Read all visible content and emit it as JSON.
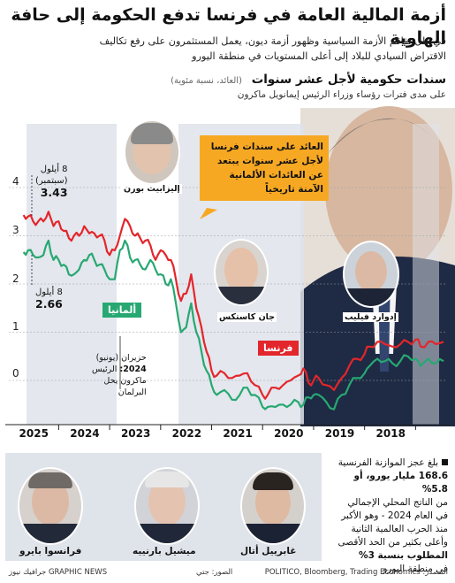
{
  "title": "أزمة المالية العامة في فرنسا تدفع الحكومة إلى حافة الهاوية",
  "intro_line1": "في ظل تفاقم الأزمة السياسية وظهور أزمة ديون، يعمل المستثمرون على رفع تكاليف",
  "intro_line2": "الاقتراض السيادي للبلاد إلى أعلى المستويات في منطقة اليورو",
  "chart_title": "سندات حكومية لأجل عشر سنوات",
  "chart_title_note": "(العائد، نسبة مئوية)",
  "chart_subnote": "على مدى فترات رؤساء وزراء الرئيس إيمانويل ماكرون",
  "callout": "العائد على سندات فرنسا لأجل عشر سنوات يبتعد عن العائدات الألمانية الآمنة تاريخياً",
  "annotations": {
    "france_date": "8 أيلول",
    "france_date_note": "(سبتمبر)",
    "france_value": "3.43",
    "germany_date": "8 أيلول",
    "germany_value": "2.66",
    "macron_date": "حزيران (يونيو)",
    "macron_year": "2024:",
    "macron_text1": "الرئيس",
    "macron_text2": "ماكرون يحل",
    "macron_text3": "البرلمان"
  },
  "series_tags": {
    "germany": "ألمانيا",
    "france": "فرنسا"
  },
  "pm_labels": {
    "borne": "إليزابيث بورن",
    "castex": "جان كاستكس",
    "philippe": "إدوارد فيليب",
    "attal": "غابرييل أتال",
    "barnier": "ميشيل بارنييه",
    "bayrou": "فرانسوا بايرو"
  },
  "deficit_text": {
    "line1": "بلغ عجز الموازنة الفرنسية",
    "line2": "168.6 مليار يورو، أو 5.8%",
    "line3": "من الناتج المحلي الإجمالي",
    "line4": "في العام 2024 - وهو الأكبر",
    "line5": "منذ الحرب العالمية الثانية",
    "line6": "وأعلى بكثير من الحد الأقصى",
    "line7": "المطلوب بنسبة 3%",
    "line8": "في منطقة اليورو"
  },
  "source": "المصدر: POLITICO, Bloomberg, Trading Economics",
  "photos": "الصور: جتي",
  "credit": "GRAPHIC NEWS جرافيك نيوز",
  "colors": {
    "france": "#e3262b",
    "germany": "#27a872",
    "callout": "#f7a823",
    "band": "#dfe3ea"
  },
  "chart_data": {
    "type": "line",
    "ylabel": "",
    "ylim": [
      -0.6,
      4.2
    ],
    "yticks": [
      0,
      1,
      2,
      3,
      4
    ],
    "xticks": [
      "2018",
      "2019",
      "2020",
      "2021",
      "2022",
      "2023",
      "2024",
      "2025"
    ],
    "x_axis_direction": "right-to-left",
    "x_range": [
      2017.4,
      2025.7
    ],
    "series": [
      {
        "name": "فرنسا",
        "x": [
          2017.45,
          2017.6,
          2017.75,
          2017.9,
          2018.0,
          2018.15,
          2018.3,
          2018.45,
          2018.6,
          2018.75,
          2018.9,
          2019.0,
          2019.15,
          2019.3,
          2019.45,
          2019.6,
          2019.75,
          2019.9,
          2020.0,
          2020.1,
          2020.2,
          2020.3,
          2020.45,
          2020.6,
          2020.75,
          2020.9,
          2021.0,
          2021.15,
          2021.3,
          2021.45,
          2021.6,
          2021.75,
          2021.9,
          2022.0,
          2022.1,
          2022.2,
          2022.3,
          2022.4,
          2022.5,
          2022.6,
          2022.7,
          2022.8,
          2022.9,
          2023.0,
          2023.1,
          2023.2,
          2023.3,
          2023.4,
          2023.5,
          2023.6,
          2023.7,
          2023.8,
          2023.9,
          2024.0,
          2024.1,
          2024.2,
          2024.3,
          2024.4,
          2024.5,
          2024.6,
          2024.7,
          2024.8,
          2024.9,
          2025.0,
          2025.1,
          2025.2,
          2025.3,
          2025.4,
          2025.5,
          2025.6,
          2025.69
        ],
        "values": [
          0.8,
          0.75,
          0.8,
          0.7,
          0.85,
          0.8,
          0.75,
          0.7,
          0.75,
          0.8,
          0.7,
          0.55,
          0.45,
          0.3,
          0.05,
          -0.2,
          -0.1,
          0.05,
          0.0,
          -0.05,
          0.25,
          0.1,
          0.0,
          -0.1,
          -0.15,
          -0.3,
          -0.3,
          -0.1,
          0.15,
          0.1,
          0.05,
          0.15,
          0.1,
          0.2,
          0.6,
          1.1,
          1.5,
          2.2,
          1.8,
          1.65,
          2.1,
          2.5,
          2.6,
          2.7,
          2.5,
          2.8,
          2.9,
          2.95,
          3.0,
          3.2,
          3.35,
          3.0,
          2.7,
          2.6,
          2.9,
          3.0,
          3.05,
          3.05,
          3.2,
          3.0,
          3.0,
          2.95,
          3.1,
          3.3,
          3.2,
          3.5,
          3.3,
          3.3,
          3.3,
          3.4,
          3.43
        ]
      },
      {
        "name": "ألمانيا",
        "x": [
          2017.45,
          2017.6,
          2017.75,
          2017.9,
          2018.0,
          2018.15,
          2018.3,
          2018.45,
          2018.6,
          2018.75,
          2018.9,
          2019.0,
          2019.15,
          2019.3,
          2019.45,
          2019.6,
          2019.75,
          2019.9,
          2020.0,
          2020.1,
          2020.2,
          2020.3,
          2020.45,
          2020.6,
          2020.75,
          2020.9,
          2021.0,
          2021.15,
          2021.3,
          2021.45,
          2021.6,
          2021.75,
          2021.9,
          2022.0,
          2022.1,
          2022.2,
          2022.3,
          2022.4,
          2022.5,
          2022.6,
          2022.7,
          2022.8,
          2022.9,
          2023.0,
          2023.1,
          2023.2,
          2023.3,
          2023.4,
          2023.5,
          2023.6,
          2023.7,
          2023.8,
          2023.9,
          2024.0,
          2024.1,
          2024.2,
          2024.3,
          2024.4,
          2024.5,
          2024.6,
          2024.7,
          2024.8,
          2024.9,
          2025.0,
          2025.1,
          2025.2,
          2025.3,
          2025.4,
          2025.5,
          2025.6,
          2025.69
        ],
        "values": [
          0.4,
          0.35,
          0.45,
          0.3,
          0.45,
          0.5,
          0.4,
          0.35,
          0.4,
          0.45,
          0.3,
          0.15,
          0.05,
          -0.1,
          -0.3,
          -0.6,
          -0.45,
          -0.3,
          -0.3,
          -0.35,
          -0.5,
          -0.45,
          -0.5,
          -0.5,
          -0.55,
          -0.55,
          -0.55,
          -0.3,
          -0.15,
          -0.3,
          -0.4,
          -0.2,
          -0.3,
          -0.1,
          0.2,
          0.6,
          1.0,
          1.6,
          1.1,
          1.0,
          1.6,
          2.1,
          2.0,
          2.2,
          2.3,
          2.5,
          2.3,
          2.4,
          2.5,
          2.55,
          2.9,
          2.7,
          2.1,
          2.1,
          2.3,
          2.4,
          2.5,
          2.6,
          2.5,
          2.3,
          2.2,
          2.2,
          2.4,
          2.5,
          2.5,
          2.9,
          2.6,
          2.55,
          2.6,
          2.7,
          2.66
        ]
      }
    ]
  }
}
